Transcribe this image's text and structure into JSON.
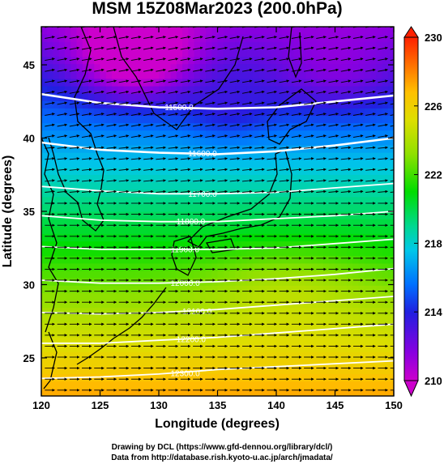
{
  "chart_data": {
    "type": "heatmap",
    "title": "MSM 15Z08Mar2023 (200.0hPa)",
    "xlabel": "Longitude (degrees)",
    "ylabel": "Latitude  (degrees)",
    "xlim": [
      120,
      150
    ],
    "ylim": [
      22.4,
      47.6
    ],
    "xticks": [
      "120",
      "125",
      "130",
      "135",
      "140",
      "145",
      "150"
    ],
    "yticks": [
      "25",
      "30",
      "35",
      "40",
      "45"
    ],
    "colorbar": {
      "range": [
        210,
        230
      ],
      "ticks": [
        "210",
        "214",
        "218",
        "222",
        "226",
        "230"
      ],
      "colors": [
        "#cc00cc",
        "#8a00e0",
        "#2020e0",
        "#0070ff",
        "#00c8e8",
        "#00d890",
        "#00dd00",
        "#90e000",
        "#dede00",
        "#ffc000",
        "#ff7000",
        "#ff2000"
      ]
    },
    "contours": [
      {
        "label": "11500.0",
        "value": 11500,
        "lats": [
          43.0,
          42.4,
          42.1,
          42.0,
          42.1,
          42.5,
          42.9
        ]
      },
      {
        "label": "11600.0",
        "value": 11600,
        "lats": [
          39.7,
          39.2,
          39.0,
          38.9,
          39.1,
          39.5,
          40.0
        ]
      },
      {
        "label": "11700.0",
        "value": 11700,
        "lats": [
          36.7,
          36.4,
          36.2,
          36.2,
          36.3,
          36.6,
          36.9
        ]
      },
      {
        "label": "11800.0",
        "value": 11800,
        "lats": [
          34.7,
          34.4,
          34.3,
          34.3,
          34.5,
          34.7,
          35.0
        ]
      },
      {
        "label": "11900.0",
        "value": 11900,
        "lats": [
          32.6,
          32.4,
          32.4,
          32.4,
          32.5,
          32.8,
          33.1
        ]
      },
      {
        "label": "12000.0",
        "value": 12000,
        "lats": [
          30.3,
          30.1,
          30.1,
          30.2,
          30.4,
          30.7,
          31.1
        ]
      },
      {
        "label": "12100.0",
        "value": 12100,
        "lats": [
          28.1,
          28.0,
          28.1,
          28.3,
          28.6,
          28.9,
          29.2
        ]
      },
      {
        "label": "12200.0",
        "value": 12200,
        "lats": [
          26.0,
          26.0,
          26.2,
          26.4,
          26.7,
          27.0,
          27.3
        ]
      },
      {
        "label": "12300.0",
        "value": 12300,
        "lats": [
          23.6,
          23.7,
          23.9,
          24.2,
          24.4,
          24.6,
          24.8
        ]
      }
    ],
    "vector_field": {
      "quantity": "wind",
      "direction": "westerly"
    }
  },
  "credits": {
    "line1": "Drawing by DCL (https://www.gfd-dennou.org/library/dcl/)",
    "line2": "Data from http://database.rish.kyoto-u.ac.jp/arch/jmadata/"
  }
}
